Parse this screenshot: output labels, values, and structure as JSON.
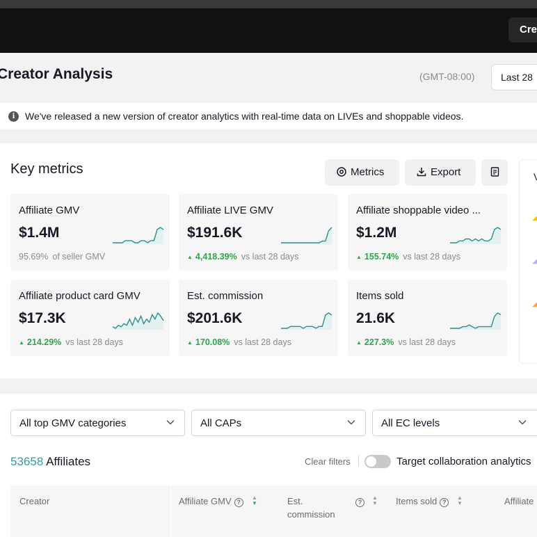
{
  "topbar": {
    "create_label": "Cre"
  },
  "header": {
    "title": "Creator Analysis",
    "timezone": "(GMT-08:00)",
    "date_range": "Last 28"
  },
  "notice": {
    "text": "We've released a new version of creator analytics with real-time data on LIVEs and shoppable videos."
  },
  "key_metrics": {
    "title": "Key metrics",
    "buttons": {
      "metrics": "Metrics",
      "export": "Export"
    },
    "tiles": [
      {
        "label": "Affiliate GMV",
        "value": "$1.4M",
        "change": "95.69%",
        "suffix": "of seller GMV",
        "trend": "neutral",
        "spark": [
          3,
          3,
          3,
          3,
          4,
          4,
          4,
          3,
          3,
          4,
          4,
          3,
          4,
          4,
          9,
          10,
          9
        ]
      },
      {
        "label": "Affiliate LIVE GMV",
        "value": "$191.6K",
        "change": "4,418.39%",
        "suffix": "vs last 28 days",
        "trend": "up",
        "spark": [
          2,
          2,
          2,
          2,
          2,
          2,
          2,
          2,
          2,
          2,
          2,
          2,
          2,
          3,
          3,
          9,
          11
        ]
      },
      {
        "label": "Affiliate shoppable video ...",
        "value": "$1.2M",
        "change": "155.74%",
        "suffix": "vs last 28 days",
        "trend": "up",
        "spark": [
          3,
          3,
          3,
          4,
          4,
          5,
          5,
          4,
          5,
          4,
          5,
          4,
          4,
          5,
          10,
          11,
          10
        ]
      },
      {
        "label": "Affiliate product card GMV",
        "value": "$17.3K",
        "change": "214.29%",
        "suffix": "vs last 28 days",
        "trend": "up",
        "spark": [
          3,
          2,
          4,
          3,
          5,
          4,
          8,
          4,
          9,
          6,
          10,
          5,
          8,
          6,
          11,
          8,
          12,
          10,
          7
        ]
      },
      {
        "label": "Est. commission",
        "value": "$201.6K",
        "change": "170.08%",
        "suffix": "vs last 28 days",
        "trend": "up",
        "spark": [
          3,
          3,
          3,
          4,
          4,
          4,
          4,
          3,
          4,
          4,
          4,
          3,
          4,
          4,
          10,
          11,
          10
        ]
      },
      {
        "label": "Items sold",
        "value": "21.6K",
        "change": "227.3%",
        "suffix": "vs last 28 days",
        "trend": "up",
        "spark": [
          3,
          3,
          3,
          3,
          4,
          4,
          5,
          4,
          3,
          4,
          4,
          4,
          4,
          4,
          10,
          12,
          11
        ]
      }
    ],
    "side_panel_initial": "V"
  },
  "filters": {
    "categories": "All top GMV categories",
    "caps": "All CAPs",
    "ec_levels": "All EC levels"
  },
  "affiliates": {
    "count": "53658",
    "label": "Affiliates",
    "clear_filters": "Clear filters",
    "toggle_label": "Target collaboration analytics"
  },
  "table": {
    "columns": {
      "creator": "Creator",
      "affiliate_gmv": "Affiliate GMV",
      "est_commission_1": "Est.",
      "est_commission_2": "commission",
      "items_sold": "Items sold",
      "affiliate": "Affiliate"
    }
  },
  "colors": {
    "accent": "#3c9a9a",
    "positive": "#2fa34b",
    "spark": "#2f8f8f"
  }
}
